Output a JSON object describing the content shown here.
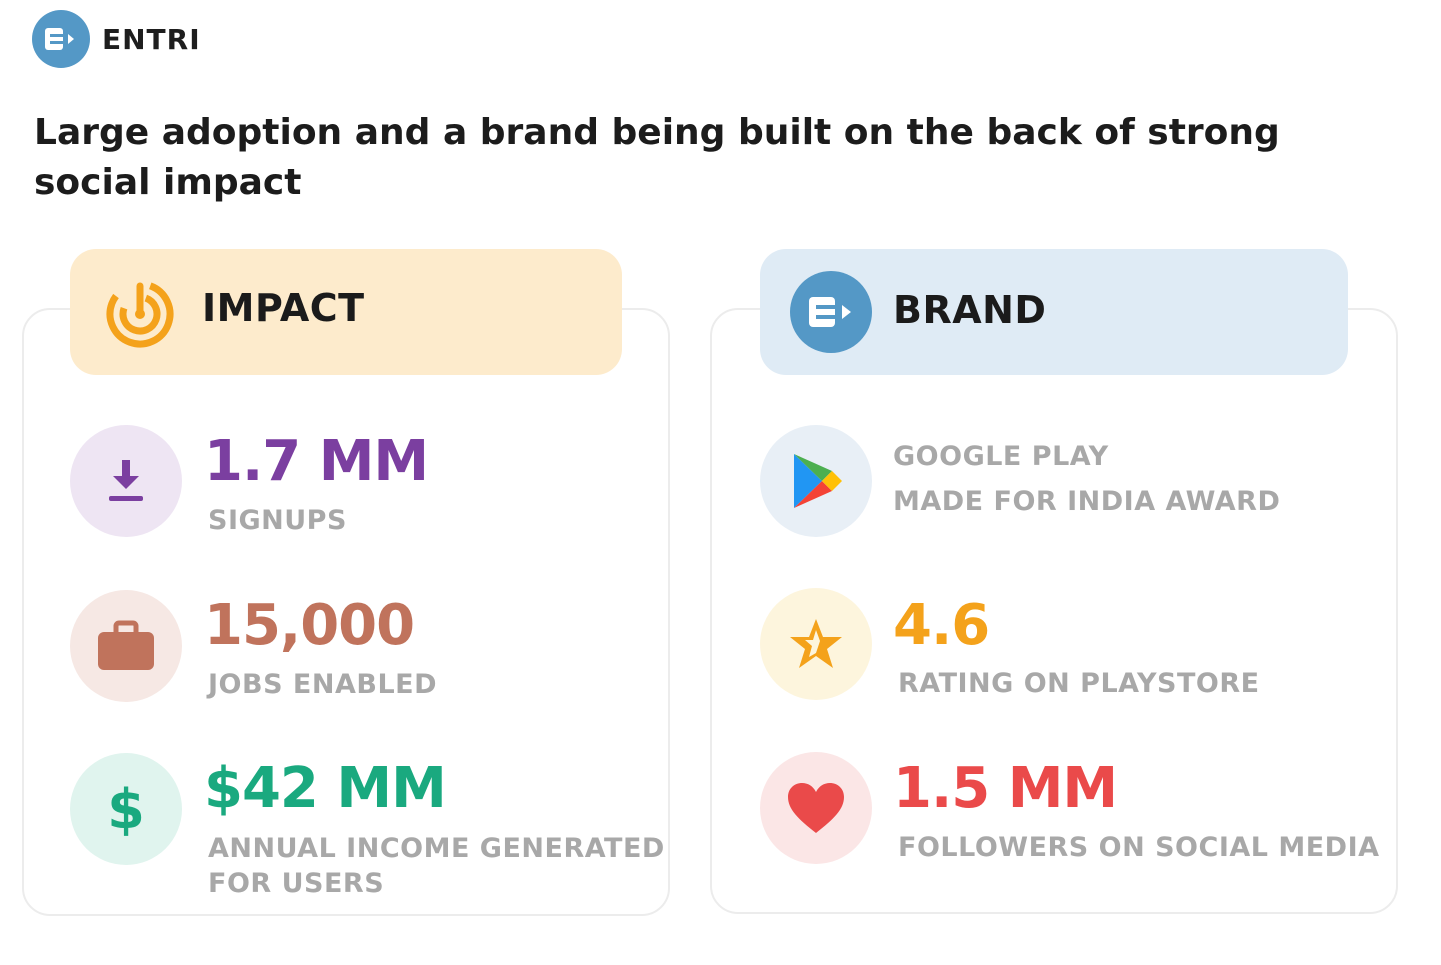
{
  "brand": {
    "name": "ENTRI"
  },
  "headline": "Large adoption and a brand being built on the back of strong social impact",
  "impact": {
    "title": "IMPACT",
    "metrics": [
      {
        "value": "1.7 MM",
        "label": "SIGNUPS",
        "icon": "download-icon",
        "color": "#7b3fa0"
      },
      {
        "value": "15,000",
        "label": "JOBS ENABLED",
        "icon": "briefcase-icon",
        "color": "#c0735c"
      },
      {
        "value": "$42 MM",
        "label": "ANNUAL INCOME GENERATED",
        "label2": "FOR USERS",
        "icon": "dollar-icon",
        "color": "#1aa97f"
      }
    ]
  },
  "brand_section": {
    "title": "BRAND",
    "metrics": [
      {
        "label": "GOOGLE PLAY",
        "label2": "MADE FOR INDIA AWARD",
        "icon": "google-play-icon"
      },
      {
        "value": "4.6",
        "label": "RATING ON PLAYSTORE",
        "icon": "star-icon",
        "color": "#f4a21b"
      },
      {
        "value": "1.5 MM",
        "label": "FOLLOWERS ON SOCIAL MEDIA",
        "icon": "heart-icon",
        "color": "#ea4a4a"
      }
    ]
  }
}
